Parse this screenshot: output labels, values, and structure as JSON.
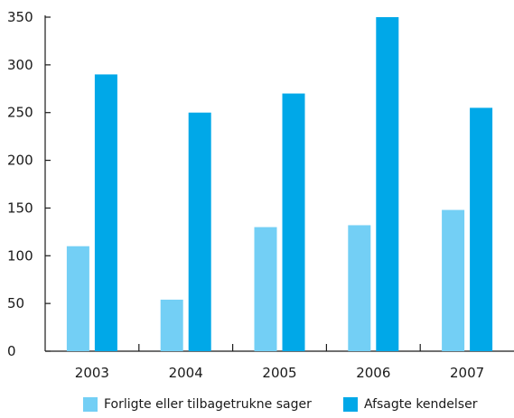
{
  "chart_data": {
    "type": "bar",
    "categories": [
      "2003",
      "2004",
      "2005",
      "2006",
      "2007"
    ],
    "series": [
      {
        "name": "Forligte eller tilbagetrukne sager",
        "color": "#73cff5",
        "values": [
          110,
          54,
          130,
          132,
          148
        ]
      },
      {
        "name": "Afsagte kendelser",
        "color": "#00a8e8",
        "values": [
          290,
          250,
          270,
          350,
          255
        ]
      }
    ],
    "ylim": [
      0,
      350
    ],
    "yticks": [
      "0",
      "50",
      "100",
      "150",
      "200",
      "250",
      "300",
      "350"
    ],
    "title": "",
    "xlabel": "",
    "ylabel": "",
    "grid": false,
    "legend_position": "bottom"
  }
}
